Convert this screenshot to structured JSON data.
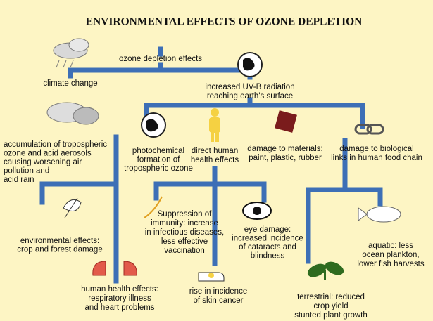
{
  "title": "ENVIRONMENTAL EFFECTS OF OZONE DEPLETION",
  "nodes": [
    {
      "lines": [
        "ozone depletion effects"
      ]
    },
    {
      "lines": [
        "climate change"
      ]
    },
    {
      "lines": [
        "increased UV-B radiation",
        "reaching earth's surface"
      ]
    },
    {
      "lines": [
        "accumulation of tropospheric",
        "ozone and acid aerosols",
        "causing worsening air",
        "pollution and",
        "acid rain"
      ]
    },
    {
      "lines": [
        "photochemical",
        "formation of",
        "tropospheric ozone"
      ]
    },
    {
      "lines": [
        "direct human",
        "health effects"
      ]
    },
    {
      "lines": [
        "damage to materials:",
        "paint, plastic, rubber"
      ]
    },
    {
      "lines": [
        "damage to biological",
        "links in human food chain"
      ]
    },
    {
      "lines": [
        "environmental effects:",
        "crop and forest damage"
      ]
    },
    {
      "lines": [
        "Suppression of",
        "immunity: increase",
        "in infectious diseases,",
        "less effective",
        "vaccination"
      ]
    },
    {
      "lines": [
        "eye damage:",
        "increased incidence",
        "of cataracts and",
        "blindness"
      ]
    },
    {
      "lines": [
        "human health effects:",
        "respiratory illness",
        "and heart problems"
      ]
    },
    {
      "lines": [
        "rise in incidence",
        "of skin cancer"
      ]
    },
    {
      "lines": [
        "terrestrial: reduced",
        "crop yield",
        "stunted plant growth"
      ]
    },
    {
      "lines": [
        "aquatic: less",
        "ocean plankton,",
        "lower fish harvests"
      ]
    }
  ]
}
